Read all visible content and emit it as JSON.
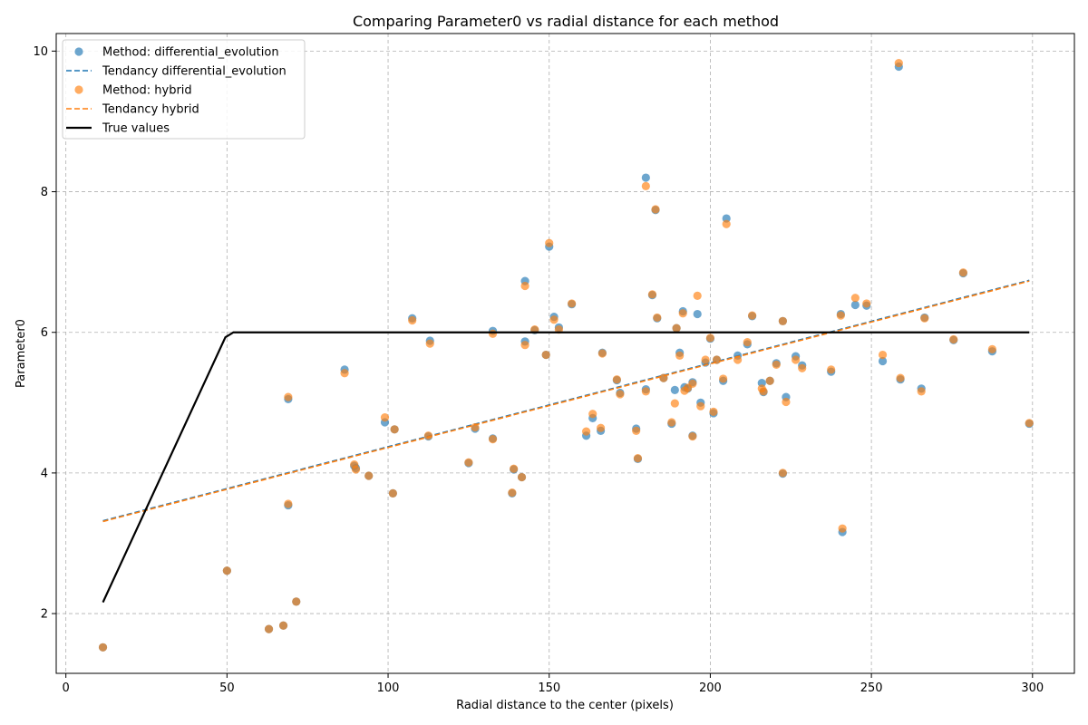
{
  "chart_data": {
    "type": "scatter",
    "title": "Comparing Parameter0 vs radial distance for each method",
    "xlabel": "Radial distance to the center (pixels)",
    "ylabel": "Parameter0",
    "xlim": [
      -3,
      313
    ],
    "ylim": [
      1.15,
      10.25
    ],
    "xticks": [
      0,
      50,
      100,
      150,
      200,
      250,
      300
    ],
    "yticks": [
      2,
      4,
      6,
      8,
      10
    ],
    "grid": true,
    "legend_position": "top-left",
    "series": [
      {
        "name": "Method: differential_evolution",
        "kind": "scatter",
        "color": "#1f77b4",
        "points": [
          [
            11.5,
            1.52
          ],
          [
            50,
            2.61
          ],
          [
            63,
            1.78
          ],
          [
            67.5,
            1.83
          ],
          [
            71.5,
            2.17
          ],
          [
            69,
            5.05
          ],
          [
            69,
            3.54
          ],
          [
            86.5,
            5.47
          ],
          [
            89.5,
            4.1
          ],
          [
            90,
            4.07
          ],
          [
            94,
            3.96
          ],
          [
            99,
            4.72
          ],
          [
            101.5,
            3.71
          ],
          [
            102,
            4.62
          ],
          [
            107.5,
            6.2
          ],
          [
            112.5,
            4.52
          ],
          [
            113,
            5.88
          ],
          [
            125,
            4.14
          ],
          [
            127,
            4.63
          ],
          [
            132.5,
            6.02
          ],
          [
            132.5,
            4.49
          ],
          [
            138.5,
            3.71
          ],
          [
            139,
            4.05
          ],
          [
            141.5,
            3.94
          ],
          [
            142.5,
            5.87
          ],
          [
            142.5,
            6.73
          ],
          [
            145.5,
            6.03
          ],
          [
            149,
            5.68
          ],
          [
            150,
            7.22
          ],
          [
            151.5,
            6.22
          ],
          [
            153,
            6.07
          ],
          [
            157,
            6.4
          ],
          [
            161.5,
            4.53
          ],
          [
            163.5,
            4.78
          ],
          [
            166,
            4.6
          ],
          [
            166.5,
            5.71
          ],
          [
            171,
            5.32
          ],
          [
            172,
            5.14
          ],
          [
            177,
            4.63
          ],
          [
            177.5,
            4.2
          ],
          [
            180,
            8.2
          ],
          [
            180,
            5.19
          ],
          [
            182,
            6.53
          ],
          [
            183,
            7.74
          ],
          [
            183.5,
            6.2
          ],
          [
            185.5,
            5.35
          ],
          [
            188,
            4.7
          ],
          [
            189,
            5.18
          ],
          [
            189.5,
            6.06
          ],
          [
            190.5,
            5.71
          ],
          [
            191.5,
            6.3
          ],
          [
            192,
            5.22
          ],
          [
            193,
            5.2
          ],
          [
            194.5,
            5.29
          ],
          [
            194.5,
            4.53
          ],
          [
            196,
            6.26
          ],
          [
            197,
            5.0
          ],
          [
            198.5,
            5.57
          ],
          [
            200,
            5.91
          ],
          [
            201,
            4.85
          ],
          [
            202,
            5.61
          ],
          [
            204,
            5.31
          ],
          [
            205,
            7.62
          ],
          [
            208.5,
            5.67
          ],
          [
            211.5,
            5.83
          ],
          [
            213,
            6.23
          ],
          [
            216,
            5.28
          ],
          [
            216.5,
            5.15
          ],
          [
            218.5,
            5.31
          ],
          [
            220.5,
            5.56
          ],
          [
            222.5,
            6.16
          ],
          [
            222.5,
            3.99
          ],
          [
            223.5,
            5.08
          ],
          [
            226.5,
            5.66
          ],
          [
            228.5,
            5.53
          ],
          [
            237.5,
            5.44
          ],
          [
            240.5,
            6.26
          ],
          [
            241,
            3.16
          ],
          [
            245,
            6.39
          ],
          [
            248.5,
            6.38
          ],
          [
            253.5,
            5.59
          ],
          [
            258.5,
            9.78
          ],
          [
            259,
            5.33
          ],
          [
            265.5,
            5.2
          ],
          [
            266.5,
            6.21
          ],
          [
            275.5,
            5.89
          ],
          [
            278.5,
            6.84
          ],
          [
            287.5,
            5.73
          ],
          [
            299,
            4.7
          ]
        ]
      },
      {
        "name": "Tendancy differential_evolution",
        "kind": "line",
        "style": "dashed",
        "color": "#1f77b4",
        "x": [
          11.5,
          299
        ],
        "y": [
          3.32,
          6.74
        ]
      },
      {
        "name": "Method: hybrid",
        "kind": "scatter",
        "color": "#ff7f0e",
        "points": [
          [
            11.5,
            1.52
          ],
          [
            50,
            2.61
          ],
          [
            63,
            1.78
          ],
          [
            67.5,
            1.83
          ],
          [
            71.5,
            2.17
          ],
          [
            69,
            5.08
          ],
          [
            69,
            3.56
          ],
          [
            86.5,
            5.42
          ],
          [
            89.5,
            4.12
          ],
          [
            90,
            4.05
          ],
          [
            94,
            3.96
          ],
          [
            99,
            4.79
          ],
          [
            101.5,
            3.71
          ],
          [
            102,
            4.62
          ],
          [
            107.5,
            6.17
          ],
          [
            112.5,
            4.53
          ],
          [
            113,
            5.84
          ],
          [
            125,
            4.15
          ],
          [
            127,
            4.65
          ],
          [
            132.5,
            5.98
          ],
          [
            132.5,
            4.48
          ],
          [
            138.5,
            3.72
          ],
          [
            139,
            4.06
          ],
          [
            141.5,
            3.94
          ],
          [
            142.5,
            5.82
          ],
          [
            142.5,
            6.66
          ],
          [
            145.5,
            6.04
          ],
          [
            149,
            5.68
          ],
          [
            150,
            7.27
          ],
          [
            151.5,
            6.18
          ],
          [
            153,
            6.04
          ],
          [
            157,
            6.41
          ],
          [
            161.5,
            4.59
          ],
          [
            163.5,
            4.84
          ],
          [
            166,
            4.64
          ],
          [
            166.5,
            5.7
          ],
          [
            171,
            5.33
          ],
          [
            172,
            5.12
          ],
          [
            177,
            4.6
          ],
          [
            177.5,
            4.21
          ],
          [
            180,
            8.08
          ],
          [
            180,
            5.16
          ],
          [
            182,
            6.54
          ],
          [
            183,
            7.75
          ],
          [
            183.5,
            6.21
          ],
          [
            185.5,
            5.35
          ],
          [
            188,
            4.72
          ],
          [
            189,
            4.99
          ],
          [
            189.5,
            6.06
          ],
          [
            190.5,
            5.67
          ],
          [
            191.5,
            6.27
          ],
          [
            192,
            5.17
          ],
          [
            193,
            5.21
          ],
          [
            194.5,
            5.27
          ],
          [
            194.5,
            4.52
          ],
          [
            196,
            6.52
          ],
          [
            197,
            4.95
          ],
          [
            198.5,
            5.61
          ],
          [
            200,
            5.92
          ],
          [
            201,
            4.87
          ],
          [
            202,
            5.61
          ],
          [
            204,
            5.34
          ],
          [
            205,
            7.54
          ],
          [
            208.5,
            5.61
          ],
          [
            211.5,
            5.86
          ],
          [
            213,
            6.24
          ],
          [
            216,
            5.2
          ],
          [
            216.5,
            5.16
          ],
          [
            218.5,
            5.31
          ],
          [
            220.5,
            5.54
          ],
          [
            222.5,
            6.16
          ],
          [
            222.5,
            4.0
          ],
          [
            223.5,
            5.01
          ],
          [
            226.5,
            5.61
          ],
          [
            228.5,
            5.49
          ],
          [
            237.5,
            5.47
          ],
          [
            240.5,
            6.24
          ],
          [
            241,
            3.21
          ],
          [
            245,
            6.49
          ],
          [
            248.5,
            6.41
          ],
          [
            253.5,
            5.68
          ],
          [
            258.5,
            9.83
          ],
          [
            259,
            5.35
          ],
          [
            265.5,
            5.16
          ],
          [
            266.5,
            6.2
          ],
          [
            275.5,
            5.9
          ],
          [
            278.5,
            6.85
          ],
          [
            287.5,
            5.76
          ],
          [
            299,
            4.71
          ]
        ]
      },
      {
        "name": "Tendancy hybrid",
        "kind": "line",
        "style": "dashed",
        "color": "#ff7f0e",
        "x": [
          11.5,
          299
        ],
        "y": [
          3.31,
          6.73
        ]
      },
      {
        "name": "True values",
        "kind": "line",
        "style": "solid",
        "color": "#000000",
        "x": [
          11.5,
          49.5,
          52,
          299
        ],
        "y": [
          2.16,
          5.93,
          6.0,
          6.0
        ]
      }
    ]
  }
}
